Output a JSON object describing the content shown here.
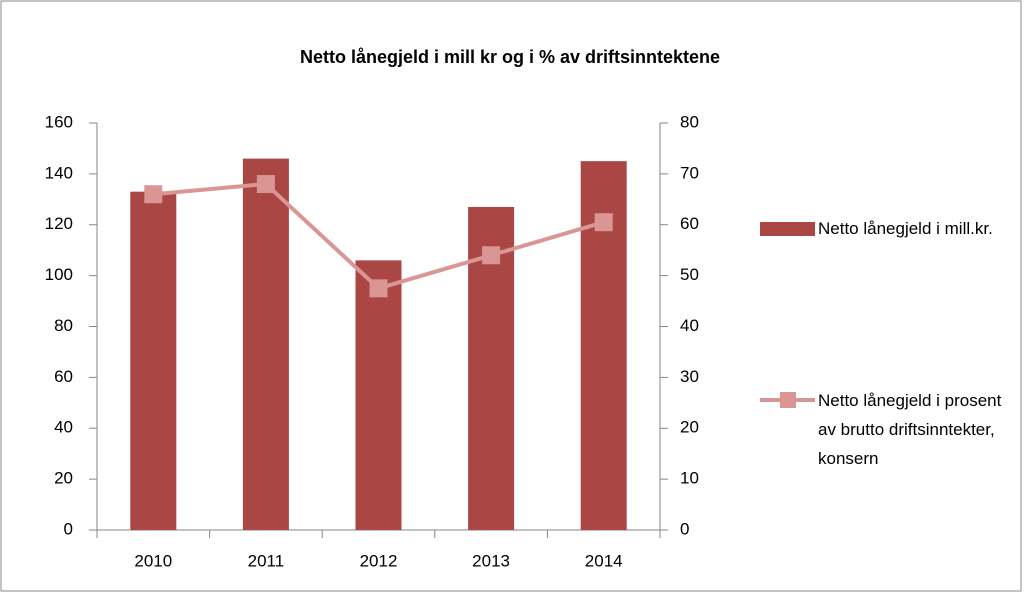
{
  "chart_data": {
    "type": "bar",
    "title": "Netto lånegjeld i mill kr og i % av driftsinntektene",
    "categories": [
      "2010",
      "2011",
      "2012",
      "2013",
      "2014"
    ],
    "series": [
      {
        "name": "Netto lånegjeld i mill.kr.",
        "type": "bar",
        "color": "#aa4643",
        "values": [
          133,
          146,
          106,
          127,
          145
        ]
      },
      {
        "name": "Netto lånegjeld i prosent av brutto driftsinntekter, konsern",
        "type": "line",
        "axis": "y2",
        "color": "#d99694",
        "values": [
          66,
          68,
          47.5,
          54,
          60.5
        ]
      }
    ],
    "ylim": [
      0,
      160
    ],
    "yticks": [
      0,
      20,
      40,
      60,
      80,
      100,
      120,
      140,
      160
    ],
    "y2lim": [
      0,
      80
    ],
    "y2ticks": [
      0,
      10,
      20,
      30,
      40,
      50,
      60,
      70,
      80
    ],
    "grid": false,
    "legend": "right"
  }
}
